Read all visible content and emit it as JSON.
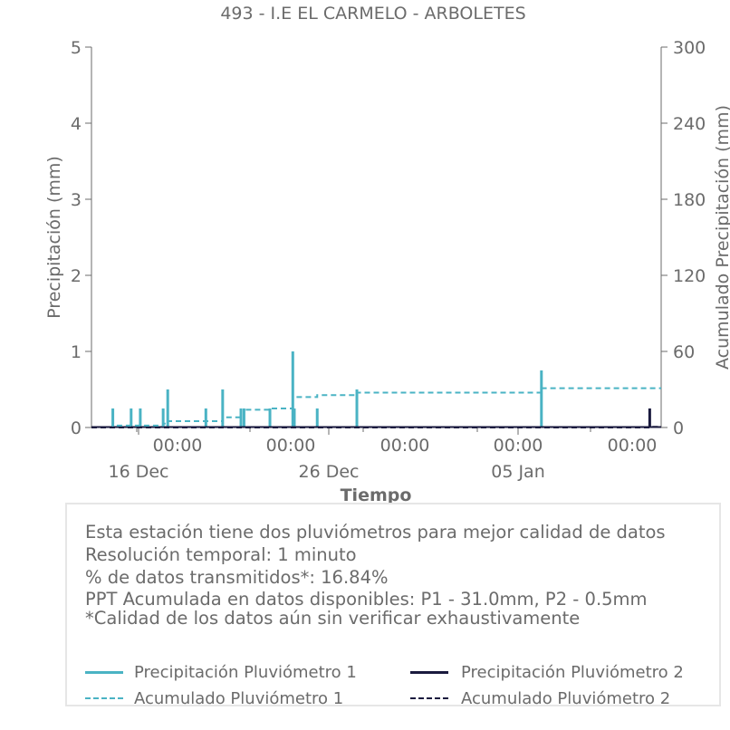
{
  "chart_data": {
    "type": "line",
    "title": "493 - I.E EL CARMELO - ARBOLETES",
    "xlabel": "Tiempo",
    "ylabel": "Precipitación (mm)",
    "y2label": "Acumulado Precipitación (mm)",
    "ylim": [
      0,
      5
    ],
    "y2lim": [
      0,
      300
    ],
    "yticks": [
      "0",
      "1",
      "2",
      "3",
      "4",
      "5"
    ],
    "y2ticks": [
      "0",
      "60",
      "120",
      "180",
      "240",
      "300"
    ],
    "xlim": [
      "2023-12-11",
      "2024-01-11T03:00"
    ],
    "xticks_time": [
      "00:00",
      "00:00",
      "00:00",
      "00:00",
      "00:00"
    ],
    "xticks_date": [
      "16 Dec",
      "26 Dec",
      "05 Jan"
    ],
    "grid": false,
    "series": [
      {
        "name": "Precipitación Pluviómetro 1",
        "axis": "left",
        "style": "solid",
        "color": "#4ab3c4",
        "points": [
          [
            "2023-12-12T04:00",
            0.25
          ],
          [
            "2023-12-13T04:00",
            0.25
          ],
          [
            "2023-12-13T16:00",
            0.25
          ],
          [
            "2023-12-14T22:00",
            0.25
          ],
          [
            "2023-12-15T04:00",
            0.5
          ],
          [
            "2023-12-17T06:00",
            0.25
          ],
          [
            "2023-12-18T04:00",
            0.5
          ],
          [
            "2023-12-19T04:00",
            0.25
          ],
          [
            "2023-12-19T08:00",
            0.25
          ],
          [
            "2023-12-20T18:00",
            0.25
          ],
          [
            "2023-12-22T00:00",
            1.0
          ],
          [
            "2023-12-22T02:00",
            0.25
          ],
          [
            "2023-12-23T08:00",
            0.25
          ],
          [
            "2023-12-25T12:00",
            0.5
          ],
          [
            "2024-01-04T14:00",
            0.75
          ]
        ]
      },
      {
        "name": "Precipitación Pluviómetro 2",
        "axis": "left",
        "style": "solid",
        "color": "#1a1a3e",
        "points": [
          [
            "2024-01-10T12:00",
            0.25
          ]
        ]
      },
      {
        "name": "Acumulado Pluviómetro 1",
        "axis": "right",
        "style": "dashed",
        "color": "#4ab3c4",
        "steps": [
          [
            "2023-12-11",
            0
          ],
          [
            "2023-12-12T04:00",
            1.5
          ],
          [
            "2023-12-14T22:00",
            3.0
          ],
          [
            "2023-12-15T04:00",
            5.0
          ],
          [
            "2023-12-18T04:00",
            8.0
          ],
          [
            "2023-12-19T04:00",
            14.0
          ],
          [
            "2023-12-20T18:00",
            15.0
          ],
          [
            "2023-12-22T00:00",
            24.0
          ],
          [
            "2023-12-23T08:00",
            25.5
          ],
          [
            "2023-12-25T12:00",
            27.5
          ],
          [
            "2024-01-04T14:00",
            31.0
          ],
          [
            "2024-01-11T03:00",
            31.0
          ]
        ]
      },
      {
        "name": "Acumulado Pluviómetro 2",
        "axis": "right",
        "style": "dashed",
        "color": "#1a1a3e",
        "steps": [
          [
            "2023-12-11",
            0
          ],
          [
            "2024-01-10T12:00",
            0.5
          ],
          [
            "2024-01-11T03:00",
            0.5
          ]
        ]
      }
    ]
  },
  "info": {
    "lines": [
      "Esta estación tiene dos pluviómetros para mejor calidad de datos",
      "Resolución temporal: 1 minuto",
      "% de datos transmitidos*: 16.84%",
      "PPT Acumulada en datos disponibles: P1 - 31.0mm, P2 - 0.5mm",
      "*Calidad de los datos aún sin verificar exhaustivamente"
    ]
  },
  "legend": {
    "p1": "Precipitación Pluviómetro 1",
    "p2": "Precipitación Pluviómetro 2",
    "a1": "Acumulado Pluviómetro 1",
    "a2": "Acumulado Pluviómetro 2"
  },
  "colors": {
    "p1": "#4ab3c4",
    "p2": "#1a1a3e",
    "text": "#6b6b6b",
    "axis": "#6b6b6b"
  }
}
